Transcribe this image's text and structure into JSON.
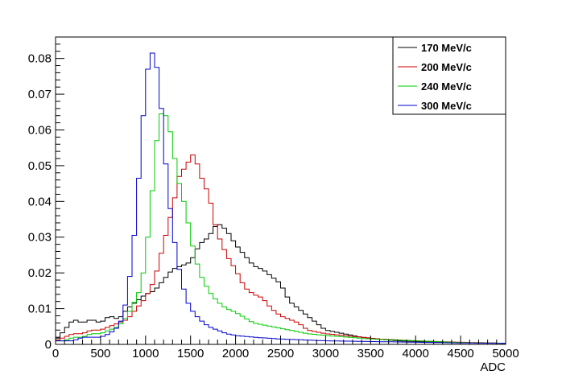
{
  "chart_data": {
    "type": "line",
    "title": "",
    "xlabel": "ADC",
    "ylabel": "",
    "xlim": [
      0,
      5000
    ],
    "ylim": [
      0,
      0.086
    ],
    "grid": false,
    "legend_position": "top-right",
    "x_ticks": [
      0,
      500,
      1000,
      1500,
      2000,
      2500,
      3000,
      3500,
      4000,
      4500,
      5000
    ],
    "x_tick_labels": [
      "0",
      "500",
      "1000",
      "1500",
      "2000",
      "2500",
      "3000",
      "3500",
      "4000",
      "4500",
      "5000"
    ],
    "y_ticks": [
      0,
      0.01,
      0.02,
      0.03,
      0.04,
      0.05,
      0.06,
      0.07,
      0.08
    ],
    "y_tick_labels": [
      "0",
      "0.01",
      "0.02",
      "0.03",
      "0.04",
      "0.05",
      "0.06",
      "0.07",
      "0.08"
    ],
    "bin_width": 50,
    "series": [
      {
        "name": "170 MeV/c",
        "color": "#000000",
        "x": [
          0,
          100,
          200,
          300,
          400,
          500,
          600,
          700,
          800,
          900,
          1000,
          1100,
          1200,
          1300,
          1400,
          1500,
          1600,
          1700,
          1800,
          1900,
          2000,
          2100,
          2200,
          2300,
          2400,
          2500,
          2600,
          2700,
          2800,
          2900,
          3000,
          3200,
          3400,
          3600,
          3800,
          4000,
          4500,
          5000
        ],
        "y": [
          0.001,
          0.004,
          0.007,
          0.006,
          0.007,
          0.006,
          0.008,
          0.007,
          0.01,
          0.012,
          0.014,
          0.015,
          0.018,
          0.021,
          0.022,
          0.023,
          0.028,
          0.03,
          0.034,
          0.032,
          0.028,
          0.025,
          0.022,
          0.021,
          0.019,
          0.017,
          0.012,
          0.01,
          0.008,
          0.006,
          0.004,
          0.003,
          0.002,
          0.0015,
          0.001,
          0.0008,
          0.0005,
          0.0003
        ]
      },
      {
        "name": "200 MeV/c",
        "color": "#cc0000",
        "x": [
          0,
          100,
          200,
          300,
          400,
          500,
          600,
          700,
          800,
          900,
          1000,
          1100,
          1200,
          1300,
          1400,
          1450,
          1500,
          1550,
          1600,
          1650,
          1700,
          1750,
          1800,
          1850,
          1900,
          2000,
          2100,
          2200,
          2300,
          2400,
          2500,
          2600,
          2700,
          2800,
          3000,
          3200,
          3400,
          3600,
          4000,
          4500,
          5000
        ],
        "y": [
          0.001,
          0.002,
          0.003,
          0.003,
          0.004,
          0.004,
          0.005,
          0.006,
          0.007,
          0.01,
          0.013,
          0.018,
          0.028,
          0.038,
          0.05,
          0.048,
          0.054,
          0.052,
          0.049,
          0.044,
          0.043,
          0.036,
          0.031,
          0.028,
          0.025,
          0.021,
          0.016,
          0.014,
          0.013,
          0.01,
          0.008,
          0.007,
          0.006,
          0.004,
          0.003,
          0.0025,
          0.002,
          0.0015,
          0.001,
          0.0006,
          0.0003
        ]
      },
      {
        "name": "240 MeV/c",
        "color": "#00cc00",
        "x": [
          0,
          100,
          200,
          300,
          400,
          500,
          600,
          700,
          800,
          900,
          950,
          1000,
          1050,
          1100,
          1150,
          1200,
          1250,
          1300,
          1350,
          1400,
          1450,
          1500,
          1550,
          1600,
          1700,
          1800,
          1900,
          2000,
          2200,
          2400,
          2600,
          2800,
          3000,
          3500,
          4000,
          4500,
          5000
        ],
        "y": [
          0.001,
          0.001,
          0.002,
          0.002,
          0.003,
          0.003,
          0.004,
          0.005,
          0.008,
          0.013,
          0.016,
          0.024,
          0.036,
          0.05,
          0.064,
          0.065,
          0.063,
          0.056,
          0.048,
          0.042,
          0.038,
          0.03,
          0.025,
          0.02,
          0.015,
          0.012,
          0.01,
          0.009,
          0.006,
          0.005,
          0.004,
          0.003,
          0.0025,
          0.0015,
          0.001,
          0.0005,
          0.0003
        ]
      },
      {
        "name": "300 MeV/c",
        "color": "#0000cc",
        "x": [
          0,
          100,
          200,
          300,
          400,
          500,
          600,
          700,
          750,
          800,
          850,
          900,
          950,
          1000,
          1050,
          1100,
          1150,
          1200,
          1250,
          1300,
          1350,
          1400,
          1450,
          1500,
          1600,
          1700,
          1800,
          1900,
          2000,
          2200,
          2500,
          3000,
          3500,
          4000,
          4500,
          5000
        ],
        "y": [
          0.001,
          0.001,
          0.001,
          0.002,
          0.002,
          0.002,
          0.003,
          0.005,
          0.008,
          0.014,
          0.024,
          0.037,
          0.056,
          0.072,
          0.082,
          0.081,
          0.074,
          0.058,
          0.043,
          0.033,
          0.024,
          0.018,
          0.013,
          0.01,
          0.007,
          0.005,
          0.004,
          0.003,
          0.0025,
          0.002,
          0.0015,
          0.001,
          0.0008,
          0.0006,
          0.0004,
          0.0003
        ]
      }
    ]
  }
}
